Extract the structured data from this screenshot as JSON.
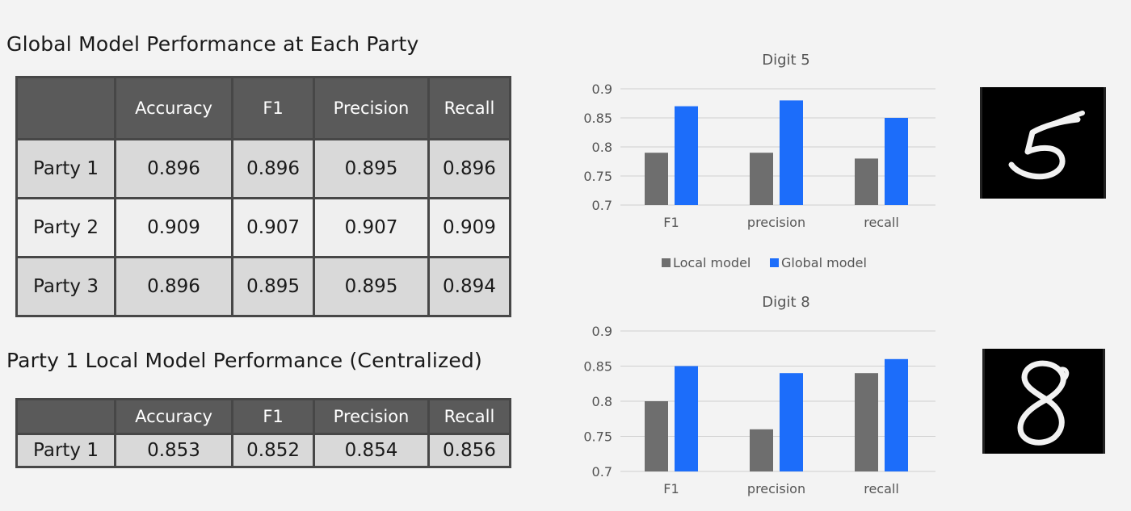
{
  "tables": {
    "global": {
      "title": "Global Model Performance at Each Party",
      "headers": [
        "",
        "Accuracy",
        "F1",
        "Precision",
        "Recall"
      ],
      "rows": [
        [
          "Party 1",
          "0.896",
          "0.896",
          "0.895",
          "0.896"
        ],
        [
          "Party 2",
          "0.909",
          "0.907",
          "0.907",
          "0.909"
        ],
        [
          "Party 3",
          "0.896",
          "0.895",
          "0.895",
          "0.894"
        ]
      ]
    },
    "local": {
      "title": "Party 1 Local Model Performance (Centralized)",
      "headers": [
        "",
        "Accuracy",
        "F1",
        "Precision",
        "Recall"
      ],
      "rows": [
        [
          "Party 1",
          "0.853",
          "0.852",
          "0.854",
          "0.856"
        ]
      ]
    }
  },
  "colors": {
    "local": "#6e6e6e",
    "global": "#1c6dfa"
  },
  "chart_data": [
    {
      "type": "bar",
      "title": "Digit 5",
      "categories": [
        "F1",
        "precision",
        "recall"
      ],
      "series": [
        {
          "name": "Local model",
          "values": [
            0.79,
            0.79,
            0.78
          ]
        },
        {
          "name": "Global model",
          "values": [
            0.87,
            0.88,
            0.85
          ]
        }
      ],
      "ylim": [
        0.7,
        0.9
      ],
      "yticks": [
        "0.7",
        "0.75",
        "0.8",
        "0.85",
        "0.9"
      ],
      "legend": "bottom",
      "grid": true
    },
    {
      "type": "bar",
      "title": "Digit 8",
      "categories": [
        "F1",
        "precision",
        "recall"
      ],
      "series": [
        {
          "name": "Local model",
          "values": [
            0.8,
            0.76,
            0.84
          ]
        },
        {
          "name": "Global model",
          "values": [
            0.85,
            0.84,
            0.86
          ]
        }
      ],
      "ylim": [
        0.7,
        0.9
      ],
      "yticks": [
        "0.7",
        "0.75",
        "0.8",
        "0.85",
        "0.9"
      ],
      "legend": "none",
      "grid": true
    }
  ],
  "images": {
    "digit5": {
      "glyph": "5"
    },
    "digit8": {
      "glyph": "8"
    }
  }
}
